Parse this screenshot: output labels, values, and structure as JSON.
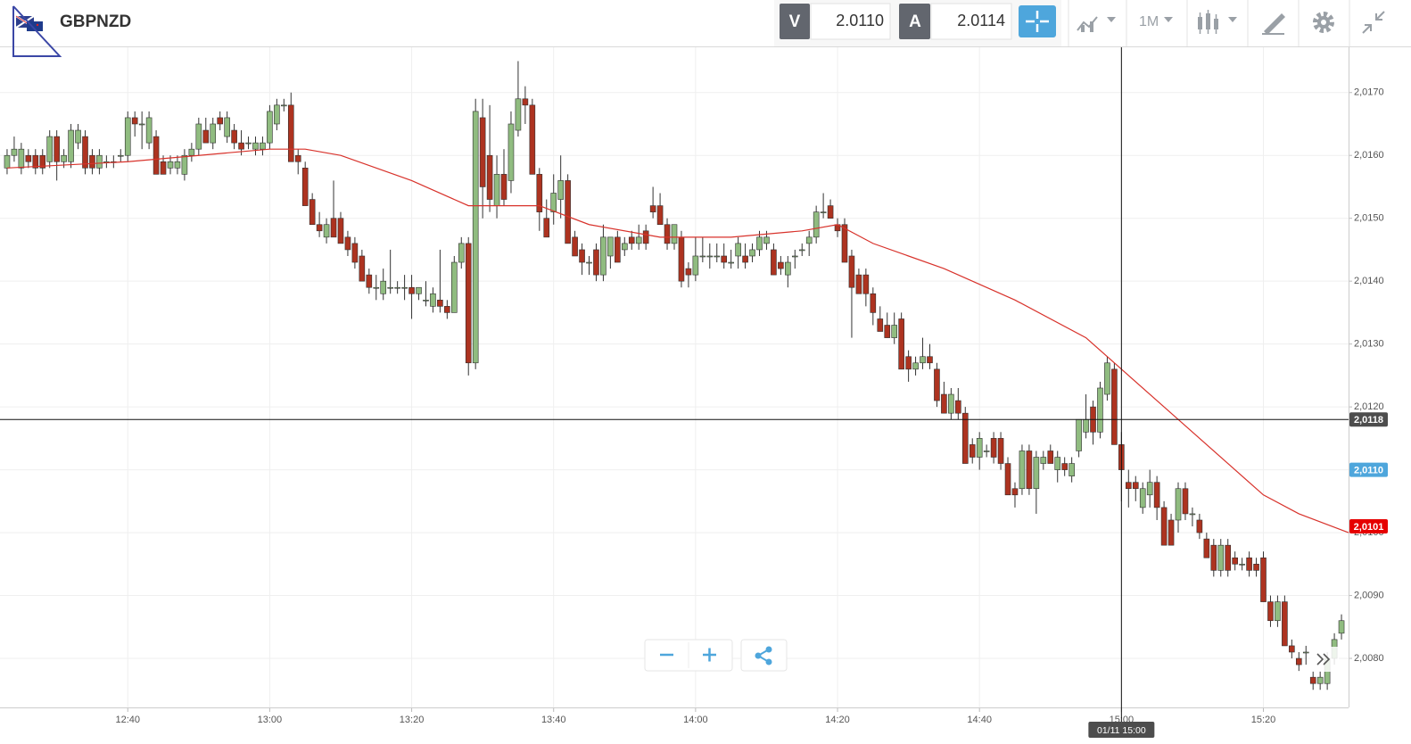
{
  "header": {
    "symbol": "GBPNZD",
    "bid_label": "V",
    "bid": "2.0110",
    "ask_label": "A",
    "ask": "2.0114",
    "interval": "1M"
  },
  "chart_data": {
    "type": "candlestick",
    "x": [
      "12:23",
      "12:24",
      "12:25",
      "12:26",
      "12:27",
      "12:28",
      "12:29",
      "12:30",
      "12:31",
      "12:32",
      "12:33",
      "12:34",
      "12:35",
      "12:36",
      "12:37",
      "12:38",
      "12:39",
      "12:40",
      "12:41",
      "12:42",
      "12:43",
      "12:44",
      "12:45",
      "12:46",
      "12:47",
      "12:48",
      "12:49",
      "12:50",
      "12:51",
      "12:52",
      "12:53",
      "12:54",
      "12:55",
      "12:56",
      "12:57",
      "12:58",
      "12:59",
      "13:00",
      "13:01",
      "13:02",
      "13:03",
      "13:04",
      "13:05",
      "13:06",
      "13:07",
      "13:08",
      "13:09",
      "13:10",
      "13:11",
      "13:12",
      "13:13",
      "13:14",
      "13:15",
      "13:16",
      "13:17",
      "13:18",
      "13:19",
      "13:20",
      "13:21",
      "13:22",
      "13:23",
      "13:24",
      "13:25",
      "13:26",
      "13:27",
      "13:28",
      "13:29",
      "13:30",
      "13:31",
      "13:32",
      "13:33",
      "13:34",
      "13:35",
      "13:36",
      "13:37",
      "13:38",
      "13:39",
      "13:40",
      "13:41",
      "13:42",
      "13:43",
      "13:44",
      "13:45",
      "13:46",
      "13:47",
      "13:48",
      "13:49",
      "13:50",
      "13:51",
      "13:52",
      "13:53",
      "13:54",
      "13:55",
      "13:56",
      "13:57",
      "13:58",
      "13:59",
      "14:00",
      "14:01",
      "14:02",
      "14:03",
      "14:04",
      "14:05",
      "14:06",
      "14:07",
      "14:08",
      "14:09",
      "14:10",
      "14:11",
      "14:12",
      "14:13",
      "14:14",
      "14:15",
      "14:16",
      "14:17",
      "14:18",
      "14:19",
      "14:20",
      "14:21",
      "14:22",
      "14:23",
      "14:24",
      "14:25",
      "14:26",
      "14:27",
      "14:28",
      "14:29",
      "14:30",
      "14:31",
      "14:32",
      "14:33",
      "14:34",
      "14:35",
      "14:36",
      "14:37",
      "14:38",
      "14:39",
      "14:40",
      "14:41",
      "14:42",
      "14:43",
      "14:44",
      "14:45",
      "14:46",
      "14:47",
      "14:48",
      "14:49",
      "14:50",
      "14:51",
      "14:52",
      "14:53",
      "14:54",
      "14:55",
      "14:56",
      "14:57",
      "14:58",
      "14:59",
      "15:00",
      "15:01",
      "15:02",
      "15:03",
      "15:04",
      "15:05",
      "15:06",
      "15:07",
      "15:08",
      "15:09",
      "15:10",
      "15:11",
      "15:12",
      "15:13",
      "15:14",
      "15:15",
      "15:16",
      "15:17",
      "15:18",
      "15:19",
      "15:20",
      "15:21",
      "15:22",
      "15:23",
      "15:24",
      "15:25",
      "15:26",
      "15:27",
      "15:28",
      "15:29",
      "15:30",
      "15:31"
    ],
    "open": [
      2.0158,
      2.016,
      2.0158,
      2.016,
      2.016,
      2.016,
      2.0159,
      2.0163,
      2.0159,
      2.0159,
      2.0162,
      2.0163,
      2.016,
      2.0158,
      2.0159,
      2.0159,
      2.016,
      2.016,
      2.0166,
      2.0165,
      2.0162,
      2.0163,
      2.0159,
      2.0158,
      2.0158,
      2.0157,
      2.016,
      2.0161,
      2.0164,
      2.0162,
      2.0166,
      2.0163,
      2.0164,
      2.0162,
      2.0162,
      2.0161,
      2.0161,
      2.0162,
      2.0165,
      2.0168,
      2.0168,
      2.016,
      2.0158,
      2.0153,
      2.0149,
      2.0147,
      2.015,
      2.015,
      2.0147,
      2.0146,
      2.0144,
      2.0141,
      2.0139,
      2.0138,
      2.0139,
      2.0139,
      2.0139,
      2.0139,
      2.0138,
      2.0137,
      2.0136,
      2.0137,
      2.0136,
      2.0135,
      2.0143,
      2.0146,
      2.0127,
      2.0166,
      2.016,
      2.0152,
      2.0157,
      2.0156,
      2.0164,
      2.0169,
      2.0168,
      2.0157,
      2.015,
      2.0151,
      2.0153,
      2.0156,
      2.0147,
      2.0145,
      2.0143,
      2.0145,
      2.0141,
      2.0144,
      2.0147,
      2.0145,
      2.0147,
      2.0146,
      2.0148,
      2.0152,
      2.0152,
      2.0149,
      2.0146,
      2.0147,
      2.0142,
      2.0141,
      2.0144,
      2.0144,
      2.0144,
      2.0144,
      2.0143,
      2.0144,
      2.0144,
      2.0144,
      2.0145,
      2.0146,
      2.0145,
      2.0143,
      2.0141,
      2.0144,
      2.0145,
      2.0146,
      2.0147,
      2.0151,
      2.0152,
      2.0149,
      2.0149,
      2.0144,
      2.0141,
      2.0141,
      2.0138,
      2.0134,
      2.0133,
      2.0131,
      2.0134,
      2.0128,
      2.0126,
      2.0127,
      2.0128,
      2.0126,
      2.0122,
      2.0119,
      2.0121,
      2.0119,
      2.0114,
      2.0112,
      2.0113,
      2.0115,
      2.0115,
      2.0111,
      2.0107,
      2.0107,
      2.0113,
      2.0107,
      2.0111,
      2.0113,
      2.011,
      2.0111,
      2.0109,
      2.0113,
      2.0116,
      2.012,
      2.0116,
      2.0122,
      2.0126,
      2.0114,
      2.0108,
      2.0108,
      2.0104,
      2.0106,
      2.0108,
      2.0104,
      2.0102,
      2.0102,
      2.0107,
      2.0103,
      2.0102,
      2.0099,
      2.0098,
      2.0094,
      2.0098,
      2.0096,
      2.0095,
      2.0096,
      2.0095,
      2.0096,
      2.0089,
      2.0086,
      2.0089,
      2.0082,
      2.008,
      2.0081,
      2.0077,
      2.0076,
      2.0076,
      2.008,
      2.0084
    ],
    "high": [
      2.0161,
      2.0163,
      2.0162,
      2.0161,
      2.0161,
      2.0161,
      2.0164,
      2.0164,
      2.0161,
      2.0165,
      2.0165,
      2.0164,
      2.0161,
      2.0161,
      2.016,
      2.016,
      2.0161,
      2.0167,
      2.0167,
      2.0167,
      2.0167,
      2.0164,
      2.016,
      2.016,
      2.016,
      2.0161,
      2.0162,
      2.0166,
      2.0166,
      2.0166,
      2.0167,
      2.0167,
      2.0165,
      2.0164,
      2.0163,
      2.0163,
      2.0163,
      2.0168,
      2.0169,
      2.0169,
      2.017,
      2.0161,
      2.0159,
      2.0154,
      2.0151,
      2.015,
      2.0156,
      2.0151,
      2.0148,
      2.0147,
      2.0145,
      2.0142,
      2.0141,
      2.0142,
      2.0145,
      2.014,
      2.0141,
      2.0141,
      2.0139,
      2.014,
      2.0139,
      2.0145,
      2.0137,
      2.0144,
      2.0147,
      2.0147,
      2.0169,
      2.0169,
      2.0168,
      2.016,
      2.0161,
      2.0167,
      2.0175,
      2.0171,
      2.0169,
      2.0158,
      2.0153,
      2.0157,
      2.016,
      2.0157,
      2.0148,
      2.0146,
      2.0144,
      2.0146,
      2.0149,
      2.0147,
      2.0148,
      2.0147,
      2.0148,
      2.0149,
      2.0149,
      2.0155,
      2.0154,
      2.015,
      2.0149,
      2.0148,
      2.0143,
      2.0147,
      2.0147,
      2.0146,
      2.0146,
      2.0146,
      2.0145,
      2.0147,
      2.0146,
      2.0146,
      2.0148,
      2.0148,
      2.0146,
      2.0144,
      2.0144,
      2.0145,
      2.0146,
      2.0148,
      2.0152,
      2.0154,
      2.0153,
      2.015,
      2.015,
      2.0145,
      2.0142,
      2.0142,
      2.0139,
      2.0136,
      2.0135,
      2.0135,
      2.0135,
      2.0129,
      2.0128,
      2.0131,
      2.013,
      2.0127,
      2.0124,
      2.0123,
      2.0123,
      2.012,
      2.0115,
      2.0116,
      2.0114,
      2.0116,
      2.0116,
      2.0112,
      2.0108,
      2.0114,
      2.0114,
      2.0113,
      2.0113,
      2.0114,
      2.0113,
      2.0112,
      2.0112,
      2.0118,
      2.0122,
      2.0121,
      2.0124,
      2.0128,
      2.0127,
      2.0116,
      2.011,
      2.0109,
      2.0108,
      2.011,
      2.0109,
      2.0105,
      2.0103,
      2.0108,
      2.0108,
      2.0104,
      2.0103,
      2.01,
      2.0099,
      2.0099,
      2.0099,
      2.0097,
      2.0096,
      2.0097,
      2.0096,
      2.0097,
      2.009,
      2.009,
      2.009,
      2.0083,
      2.0081,
      2.0082,
      2.0078,
      2.0078,
      2.0081,
      2.0084,
      2.0087
    ],
    "low": [
      2.0157,
      2.0159,
      2.0157,
      2.0158,
      2.0157,
      2.0157,
      2.0158,
      2.0156,
      2.0158,
      2.0158,
      2.0161,
      2.0157,
      2.0157,
      2.0157,
      2.0158,
      2.0158,
      2.0159,
      2.0159,
      2.0163,
      2.0161,
      2.0161,
      2.0157,
      2.0157,
      2.0157,
      2.0157,
      2.0156,
      2.0159,
      2.016,
      2.0162,
      2.0161,
      2.0164,
      2.0162,
      2.0161,
      2.016,
      2.0161,
      2.016,
      2.016,
      2.0161,
      2.0164,
      2.0167,
      2.0159,
      2.0157,
      2.0152,
      2.0149,
      2.0147,
      2.0146,
      2.0147,
      2.0146,
      2.0144,
      2.0142,
      2.014,
      2.0138,
      2.0137,
      2.0137,
      2.0138,
      2.0138,
      2.0137,
      2.0134,
      2.0137,
      2.0136,
      2.0135,
      2.0135,
      2.0134,
      2.0135,
      2.0142,
      2.0125,
      2.0126,
      2.015,
      2.0151,
      2.015,
      2.0152,
      2.0154,
      2.0163,
      2.0165,
      2.0157,
      2.0148,
      2.0147,
      2.0149,
      2.015,
      2.0146,
      2.0144,
      2.0141,
      2.0141,
      2.014,
      2.014,
      2.0142,
      2.0143,
      2.0144,
      2.0145,
      2.0145,
      2.0145,
      2.015,
      2.0149,
      2.0145,
      2.0145,
      2.0139,
      2.0139,
      2.014,
      2.0143,
      2.0142,
      2.0143,
      2.0142,
      2.0142,
      2.0142,
      2.0142,
      2.0143,
      2.0144,
      2.0145,
      2.0141,
      2.0141,
      2.0139,
      2.0142,
      2.0144,
      2.0144,
      2.0146,
      2.015,
      2.015,
      2.0147,
      2.0143,
      2.0131,
      2.0138,
      2.0136,
      2.0133,
      2.0132,
      2.0131,
      2.013,
      2.0126,
      2.0124,
      2.0125,
      2.0126,
      2.0126,
      2.012,
      2.0119,
      2.0118,
      2.0118,
      2.0111,
      2.0111,
      2.011,
      2.0112,
      2.0111,
      2.011,
      2.0106,
      2.0104,
      2.0106,
      2.0106,
      2.0103,
      2.011,
      2.0111,
      2.0108,
      2.0109,
      2.0108,
      2.0112,
      2.0115,
      2.0114,
      2.0115,
      2.0121,
      2.0114,
      2.0105,
      2.0104,
      2.0105,
      2.0103,
      2.0104,
      2.0102,
      2.0098,
      2.0098,
      2.01,
      2.0102,
      2.0101,
      2.0099,
      2.0096,
      2.0093,
      2.0093,
      2.0093,
      2.0094,
      2.0094,
      2.0093,
      2.0093,
      2.0089,
      2.0085,
      2.0085,
      2.0082,
      2.008,
      2.0078,
      2.0079,
      2.0075,
      2.0075,
      2.0075,
      2.0079,
      2.0083
    ],
    "close": [
      2.016,
      2.0161,
      2.0161,
      2.0159,
      2.0158,
      2.0158,
      2.0163,
      2.0159,
      2.016,
      2.0164,
      2.0164,
      2.0158,
      2.0158,
      2.016,
      2.0159,
      2.0159,
      2.016,
      2.0166,
      2.0165,
      2.0165,
      2.0166,
      2.0157,
      2.0157,
      2.0159,
      2.0159,
      2.016,
      2.0161,
      2.0165,
      2.0162,
      2.0165,
      2.0165,
      2.0166,
      2.0162,
      2.0161,
      2.0162,
      2.0162,
      2.0162,
      2.0167,
      2.0168,
      2.0168,
      2.0159,
      2.0159,
      2.0152,
      2.0149,
      2.0148,
      2.0149,
      2.0147,
      2.0146,
      2.0145,
      2.0143,
      2.014,
      2.0139,
      2.0139,
      2.014,
      2.0139,
      2.0139,
      2.0139,
      2.0138,
      2.0139,
      2.0137,
      2.0138,
      2.0136,
      2.0135,
      2.0143,
      2.0146,
      2.0127,
      2.0167,
      2.0155,
      2.0153,
      2.0157,
      2.0153,
      2.0165,
      2.0169,
      2.0168,
      2.0157,
      2.0151,
      2.0147,
      2.0154,
      2.0156,
      2.0146,
      2.0144,
      2.0143,
      2.0143,
      2.0141,
      2.0147,
      2.0147,
      2.0143,
      2.0146,
      2.0146,
      2.0147,
      2.0146,
      2.0151,
      2.0149,
      2.0146,
      2.0149,
      2.014,
      2.0141,
      2.0144,
      2.0144,
      2.0144,
      2.0144,
      2.0143,
      2.0143,
      2.0146,
      2.0143,
      2.0145,
      2.0147,
      2.0147,
      2.0141,
      2.0142,
      2.0143,
      2.0144,
      2.0145,
      2.0147,
      2.0151,
      2.0151,
      2.015,
      2.0148,
      2.0143,
      2.0139,
      2.0138,
      2.0138,
      2.0135,
      2.0132,
      2.0131,
      2.0133,
      2.0126,
      2.0126,
      2.0127,
      2.0128,
      2.0127,
      2.0121,
      2.0119,
      2.0122,
      2.0119,
      2.0111,
      2.0112,
      2.0115,
      2.0113,
      2.0112,
      2.0111,
      2.0106,
      2.0106,
      2.0113,
      2.0107,
      2.0112,
      2.0112,
      2.0111,
      2.0112,
      2.011,
      2.0111,
      2.0118,
      2.0118,
      2.0116,
      2.0123,
      2.0127,
      2.0114,
      2.011,
      2.0107,
      2.0107,
      2.0107,
      2.0108,
      2.0104,
      2.0098,
      2.0098,
      2.0107,
      2.0103,
      2.0103,
      2.01,
      2.0096,
      2.0094,
      2.0098,
      2.0094,
      2.0095,
      2.0095,
      2.0094,
      2.0094,
      2.0089,
      2.0086,
      2.0089,
      2.0082,
      2.0081,
      2.0079,
      2.0081,
      2.0076,
      2.0077,
      2.008,
      2.0083,
      2.0086
    ],
    "up_color": "#90bc80",
    "down_color": "#ad3320",
    "xlim": [
      "12:22",
      "15:32"
    ],
    "xticks": [
      "12:40",
      "13:00",
      "13:20",
      "13:40",
      "14:00",
      "14:20",
      "14:40",
      "15:00",
      "15:20"
    ],
    "ylim": [
      2.00722,
      2.01772
    ],
    "yticks": [
      {
        "value": 2.017,
        "label": "2,0170"
      },
      {
        "value": 2.016,
        "label": "2,0160"
      },
      {
        "value": 2.015,
        "label": "2,0150"
      },
      {
        "value": 2.014,
        "label": "2,0140"
      },
      {
        "value": 2.013,
        "label": "2,0130"
      },
      {
        "value": 2.012,
        "label": "2,0120"
      },
      {
        "value": 2.011,
        "label": "2,0110"
      },
      {
        "value": 2.01,
        "label": "2,0100"
      },
      {
        "value": 2.009,
        "label": "2,0090"
      },
      {
        "value": 2.008,
        "label": "2,0080"
      }
    ],
    "grid": true,
    "moving_average": {
      "color": "#d8322b",
      "x": [
        "12:23",
        "12:40",
        "12:50",
        "13:00",
        "13:05",
        "13:10",
        "13:20",
        "13:28",
        "13:32",
        "13:38",
        "13:45",
        "13:55",
        "14:05",
        "14:15",
        "14:20",
        "14:25",
        "14:35",
        "14:45",
        "14:55",
        "15:00",
        "15:05",
        "15:10",
        "15:15",
        "15:20",
        "15:25",
        "15:32"
      ],
      "values": [
        2.0158,
        2.0159,
        2.016,
        2.0161,
        2.0161,
        2.016,
        2.0156,
        2.0152,
        2.0152,
        2.0152,
        2.0149,
        2.0147,
        2.0147,
        2.0148,
        2.0149,
        2.0146,
        2.0142,
        2.0137,
        2.0131,
        2.0126,
        2.0121,
        2.0116,
        2.0111,
        2.0106,
        2.0103,
        2.01
      ]
    },
    "price_markers": [
      {
        "value": 2.0118,
        "label": "2,0118",
        "color": "#4d4d4d"
      },
      {
        "value": 2.011,
        "label": "2,0110",
        "color": "#4ea6dc"
      },
      {
        "value": 2.0101,
        "label": "2,0101",
        "color": "#e60000"
      }
    ],
    "crosshair": {
      "x": "15:00",
      "label": "01/11 15:00"
    }
  }
}
